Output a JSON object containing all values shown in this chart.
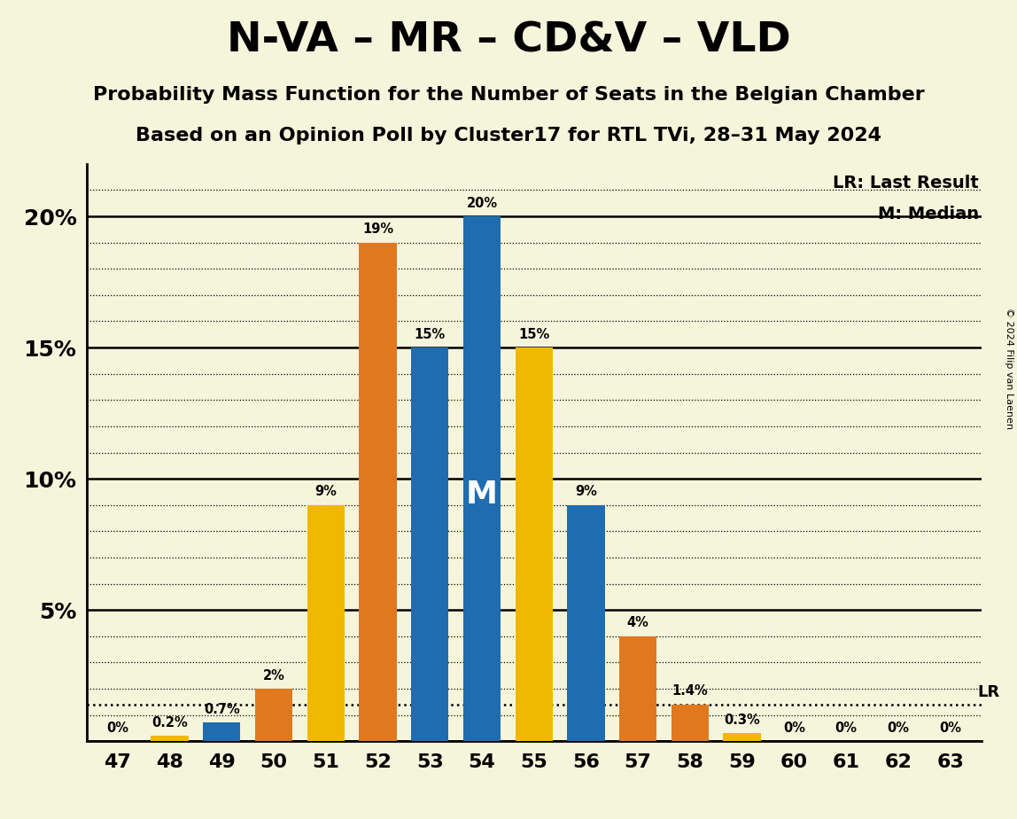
{
  "title": "N-VA – MR – CD&V – VLD",
  "subtitle1": "Probability Mass Function for the Number of Seats in the Belgian Chamber",
  "subtitle2": "Based on an Opinion Poll by Cluster17 for RTL TVi, 28–31 May 2024",
  "copyright": "© 2024 Filip van Laenen",
  "legend_lr": "LR: Last Result",
  "legend_m": "M: Median",
  "seats": [
    47,
    48,
    49,
    50,
    51,
    52,
    53,
    54,
    55,
    56,
    57,
    58,
    59,
    60,
    61,
    62,
    63
  ],
  "bar_values": [
    0.0,
    0.2,
    0.7,
    2.0,
    9.0,
    19.0,
    15.0,
    20.0,
    15.0,
    9.0,
    4.0,
    1.4,
    0.3,
    0.0,
    0.0,
    0.0,
    0.0
  ],
  "bar_colors": [
    "#f0b800",
    "#f0b800",
    "#1f6cb0",
    "#e07820",
    "#f0b800",
    "#e07820",
    "#1f6cb0",
    "#1f6cb0",
    "#f0b800",
    "#1f6cb0",
    "#e07820",
    "#e07820",
    "#f0b800",
    "#f0b800",
    "#f0b800",
    "#f0b800",
    "#f0b800"
  ],
  "bar_labels": [
    "0%",
    "0.2%",
    "0.7%",
    "2%",
    "9%",
    "19%",
    "15%",
    "20%",
    "15%",
    "9%",
    "4%",
    "1.4%",
    "0.3%",
    "0%",
    "0%",
    "0%",
    "0%"
  ],
  "show_label": [
    true,
    true,
    true,
    true,
    true,
    true,
    true,
    true,
    true,
    true,
    true,
    true,
    true,
    true,
    true,
    true,
    true
  ],
  "blue_color": "#1f6cb0",
  "orange_color": "#e07820",
  "yellow_color": "#f0b800",
  "background_color": "#f5f5dc",
  "median_seat": 54,
  "median_bar_idx": 7,
  "lr_value": 1.4,
  "ylim": [
    0,
    22.0
  ],
  "yticks": [
    0,
    5,
    10,
    15,
    20
  ],
  "ytick_labels": [
    "",
    "5%",
    "10%",
    "15%",
    "20%"
  ],
  "minor_yticks": [
    1,
    2,
    3,
    4,
    6,
    7,
    8,
    9,
    11,
    12,
    13,
    14,
    16,
    17,
    18,
    19,
    21
  ],
  "bar_width": 0.72
}
